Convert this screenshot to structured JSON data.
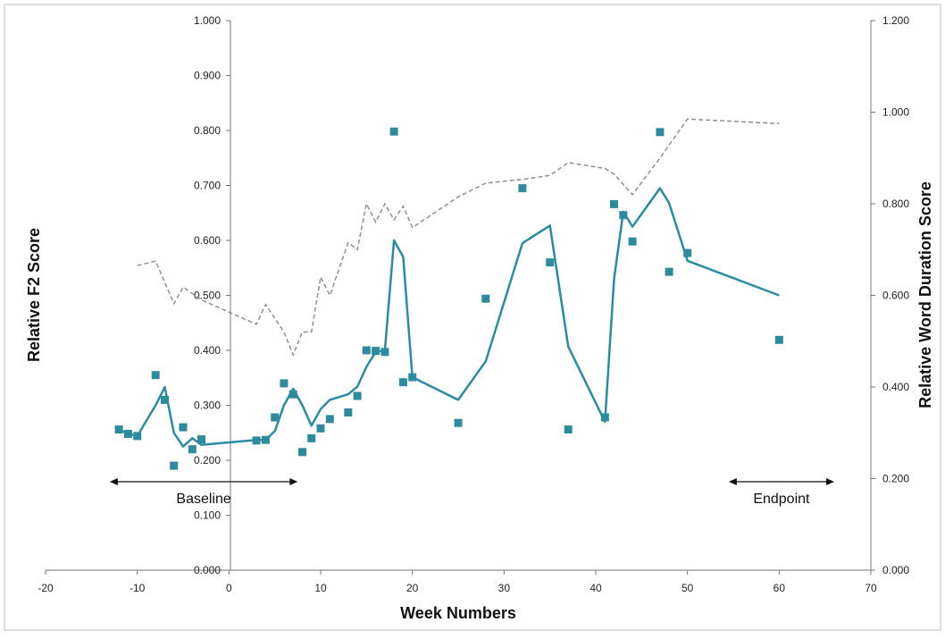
{
  "chart_data": {
    "type": "scatter",
    "xlabel": "Week Numbers",
    "ylabel": "Relative F2 Score",
    "y2label": "Relative Word Duration Score",
    "xlim": [
      -20,
      70
    ],
    "ylim": [
      0,
      1
    ],
    "y2lim": [
      0,
      1.2
    ],
    "xticks": [
      "-20",
      "-10",
      "0",
      "10",
      "20",
      "30",
      "40",
      "50",
      "60",
      "70"
    ],
    "yticks": [
      "0.000",
      "0.100",
      "0.200",
      "0.300",
      "0.400",
      "0.500",
      "0.600",
      "0.700",
      "0.800",
      "0.900",
      "1.000"
    ],
    "y2ticks": [
      "0.000",
      "0.200",
      "0.400",
      "0.600",
      "0.800",
      "1.000",
      "1.200"
    ],
    "grid": false,
    "colors": {
      "markers": "#2e8b9e",
      "trend": "#2a8ca0",
      "duration": "#909090"
    },
    "series": [
      {
        "kind": "markers",
        "axis": "left",
        "x": [
          -12,
          -11,
          -10,
          -8,
          -7,
          -6,
          -5,
          -4,
          -3,
          3,
          4,
          5,
          6,
          7,
          8,
          9,
          10,
          11,
          13,
          14,
          15,
          16,
          17,
          18,
          19,
          20,
          25,
          28,
          32,
          35,
          37,
          41,
          42,
          43,
          44,
          47,
          48,
          50,
          60
        ],
        "y": [
          0.256,
          0.248,
          0.244,
          0.355,
          0.31,
          0.19,
          0.26,
          0.22,
          0.238,
          0.236,
          0.237,
          0.278,
          0.34,
          0.32,
          0.215,
          0.24,
          0.258,
          0.275,
          0.287,
          0.317,
          0.4,
          0.399,
          0.397,
          0.798,
          0.342,
          0.351,
          0.268,
          0.494,
          0.695,
          0.56,
          0.256,
          0.278,
          0.666,
          0.646,
          0.598,
          0.797,
          0.543,
          0.577,
          0.419
        ]
      },
      {
        "kind": "line",
        "axis": "left",
        "x": [
          -12,
          -11,
          -10,
          -8,
          -7,
          -6,
          -5,
          -4,
          -3,
          3,
          4,
          5,
          6,
          7,
          8,
          9,
          10,
          11,
          13,
          14,
          15,
          16,
          17,
          18,
          19,
          20,
          25,
          28,
          32,
          35,
          37,
          41,
          42,
          43,
          44,
          47,
          48,
          50,
          60
        ],
        "y": [
          0.256,
          0.248,
          0.244,
          0.3,
          0.333,
          0.25,
          0.225,
          0.24,
          0.228,
          0.237,
          0.237,
          0.253,
          0.3,
          0.33,
          0.3,
          0.263,
          0.293,
          0.31,
          0.32,
          0.334,
          0.37,
          0.397,
          0.4,
          0.6,
          0.57,
          0.351,
          0.31,
          0.38,
          0.595,
          0.627,
          0.407,
          0.27,
          0.53,
          0.652,
          0.625,
          0.695,
          0.668,
          0.563,
          0.5
        ]
      },
      {
        "kind": "dashed",
        "axis": "right",
        "x": [
          -10,
          -8,
          -6,
          -5,
          -3,
          3,
          4,
          6,
          7,
          8,
          9,
          10,
          11,
          13,
          14,
          15,
          16,
          17,
          18,
          19,
          20,
          25,
          28,
          32,
          35,
          37,
          41,
          42,
          44,
          47,
          50,
          60
        ],
        "y": [
          0.665,
          0.675,
          0.582,
          0.618,
          0.59,
          0.537,
          0.58,
          0.52,
          0.47,
          0.52,
          0.52,
          0.64,
          0.6,
          0.715,
          0.7,
          0.8,
          0.76,
          0.8,
          0.765,
          0.795,
          0.748,
          0.815,
          0.845,
          0.853,
          0.862,
          0.89,
          0.877,
          0.865,
          0.82,
          0.9,
          0.985,
          0.975
        ]
      }
    ],
    "annotations": [
      {
        "label": "Baseline",
        "range": [
          -13,
          7.5
        ]
      },
      {
        "label": "Endpoint",
        "range": [
          54.5,
          66
        ]
      }
    ]
  }
}
